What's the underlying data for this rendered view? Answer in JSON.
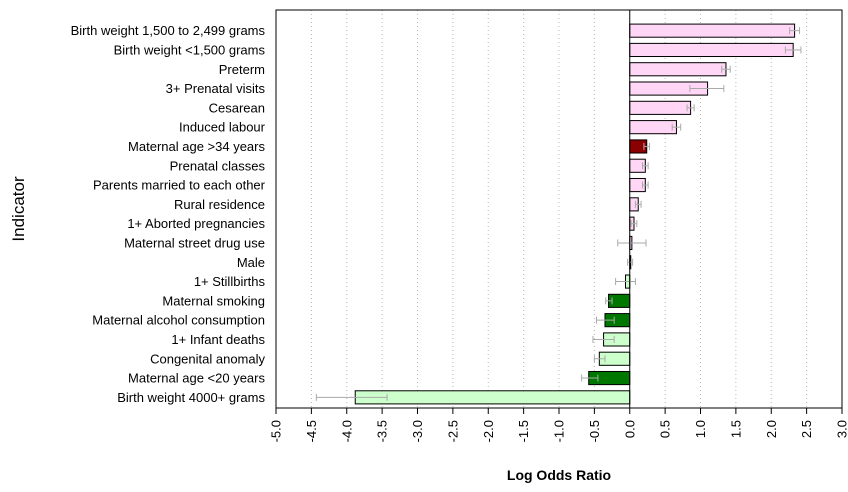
{
  "chart_data": {
    "type": "bar",
    "orientation": "horizontal",
    "title": "",
    "xlabel": "Log Odds Ratio",
    "ylabel": "Indicator",
    "xlim": [
      -5.0,
      3.0
    ],
    "x_ticks": [
      "-5.0",
      "-4.5",
      "-4.0",
      "-3.5",
      "-3.0",
      "-2.5",
      "-2.0",
      "-1.5",
      "-1.0",
      "-0.5",
      "0.0",
      "0.5",
      "1.0",
      "1.5",
      "2.0",
      "2.5",
      "3.0"
    ],
    "x_tick_values": [
      -5.0,
      -4.5,
      -4.0,
      -3.5,
      -3.0,
      -2.5,
      -2.0,
      -1.5,
      -1.0,
      -0.5,
      0.0,
      0.5,
      1.0,
      1.5,
      2.0,
      2.5,
      3.0
    ],
    "grid": "vertical dotted",
    "error_bars": true,
    "bars": [
      {
        "label": "Birth weight 1,500 to 2,499 grams",
        "value": 2.33,
        "ci": [
          2.26,
          2.4
        ],
        "color": "#ffd6f5"
      },
      {
        "label": "Birth weight <1,500 grams",
        "value": 2.31,
        "ci": [
          2.2,
          2.42
        ],
        "color": "#ffd6f5"
      },
      {
        "label": "Preterm",
        "value": 1.36,
        "ci": [
          1.3,
          1.42
        ],
        "color": "#ffd6f5"
      },
      {
        "label": "3+ Prenatal visits",
        "value": 1.1,
        "ci": [
          0.85,
          1.33
        ],
        "color": "#ffd6f5"
      },
      {
        "label": "Cesarean",
        "value": 0.86,
        "ci": [
          0.81,
          0.91
        ],
        "color": "#ffd6f5"
      },
      {
        "label": "Induced labour",
        "value": 0.66,
        "ci": [
          0.6,
          0.72
        ],
        "color": "#ffd6f5"
      },
      {
        "label": "Maternal age >34 years",
        "value": 0.24,
        "ci": [
          0.2,
          0.28
        ],
        "color": "#8b0000"
      },
      {
        "label": "Prenatal classes",
        "value": 0.22,
        "ci": [
          0.18,
          0.26
        ],
        "color": "#ffd6f5"
      },
      {
        "label": "Parents married to each other",
        "value": 0.22,
        "ci": [
          0.18,
          0.26
        ],
        "color": "#ffd6f5"
      },
      {
        "label": "Rural residence",
        "value": 0.12,
        "ci": [
          0.08,
          0.16
        ],
        "color": "#ffd6f5"
      },
      {
        "label": "1+ Aborted pregnancies",
        "value": 0.06,
        "ci": [
          0.02,
          0.1
        ],
        "color": "#ffd6f5"
      },
      {
        "label": "Maternal street drug use",
        "value": 0.03,
        "ci": [
          -0.17,
          0.23
        ],
        "color": "#ffd6f5"
      },
      {
        "label": "Male",
        "value": 0.01,
        "ci": [
          -0.03,
          0.04
        ],
        "color": "#ffd6f5"
      },
      {
        "label": "1+ Stillbirths",
        "value": -0.06,
        "ci": [
          -0.2,
          0.08
        ],
        "color": "#ccffcc"
      },
      {
        "label": "Maternal smoking",
        "value": -0.3,
        "ci": [
          -0.34,
          -0.25
        ],
        "color": "#007700"
      },
      {
        "label": "Maternal alcohol consumption",
        "value": -0.35,
        "ci": [
          -0.47,
          -0.22
        ],
        "color": "#007700"
      },
      {
        "label": "1+ Infant deaths",
        "value": -0.37,
        "ci": [
          -0.52,
          -0.22
        ],
        "color": "#ccffcc"
      },
      {
        "label": "Congenital anomaly",
        "value": -0.43,
        "ci": [
          -0.5,
          -0.35
        ],
        "color": "#ccffcc"
      },
      {
        "label": "Maternal age <20 years",
        "value": -0.58,
        "ci": [
          -0.68,
          -0.45
        ],
        "color": "#007700"
      },
      {
        "label": "Birth weight 4000+ grams",
        "value": -3.88,
        "ci": [
          -4.43,
          -3.43
        ],
        "color": "#ccffcc"
      }
    ]
  }
}
